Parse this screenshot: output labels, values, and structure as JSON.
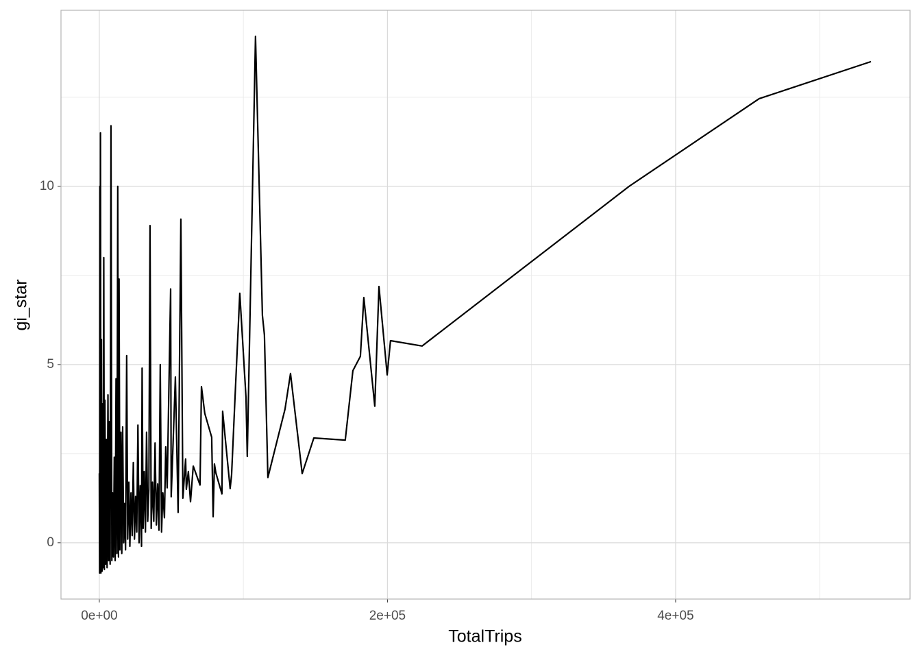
{
  "chart_data": {
    "type": "line",
    "x_label": "TotalTrips",
    "y_label": "gi_star",
    "color": "#000000",
    "grid": true,
    "xlim": [
      -26600,
      562700
    ],
    "ylim": [
      -1.58,
      14.94
    ],
    "xticks": [
      {
        "value": 0,
        "label": "0e+00"
      },
      {
        "value": 200000,
        "label": "2e+05"
      },
      {
        "value": 400000,
        "label": "4e+05"
      }
    ],
    "yticks": [
      0,
      5,
      10
    ],
    "x": [
      0,
      200,
      400,
      600,
      800,
      1100,
      1500,
      1900,
      2300,
      2700,
      3100,
      3500,
      3900,
      4400,
      4900,
      5400,
      6000,
      6500,
      7000,
      7500,
      8100,
      8700,
      9200,
      9800,
      10400,
      11000,
      11600,
      12200,
      12800,
      13300,
      13700,
      14300,
      15000,
      15600,
      16200,
      16900,
      17500,
      18200,
      19000,
      19700,
      20500,
      21200,
      22000,
      22800,
      23600,
      24400,
      25200,
      26000,
      26800,
      27600,
      28400,
      29300,
      29700,
      30400,
      31200,
      32000,
      32800,
      33600,
      34400,
      35200,
      36000,
      36900,
      37800,
      38700,
      39600,
      40500,
      41400,
      42300,
      43200,
      44100,
      45200,
      46100,
      47100,
      49500,
      49900,
      52800,
      54700,
      56600,
      58000,
      59900,
      60400,
      61800,
      63300,
      65200,
      69900,
      70900,
      73200,
      78000,
      79000,
      79900,
      80900,
      85100,
      85600,
      90800,
      91800,
      94200,
      97500,
      101800,
      102700,
      108400,
      113200,
      114600,
      117000,
      128900,
      132700,
      140800,
      148900,
      170700,
      176000,
      181200,
      183600,
      191200,
      194100,
      199800,
      202100,
      224000,
      367700,
      458000,
      535600
    ],
    "values": [
      1.95,
      -0.85,
      10.0,
      -0.8,
      11.5,
      -0.85,
      5.7,
      -0.8,
      3.9,
      -0.7,
      8.0,
      -0.75,
      4.0,
      -0.6,
      2.9,
      -0.7,
      4.15,
      -0.5,
      3.4,
      -0.6,
      11.7,
      -0.5,
      1.4,
      -0.4,
      2.4,
      -0.5,
      4.6,
      -0.3,
      10.0,
      -0.4,
      7.4,
      -0.2,
      3.1,
      -0.3,
      3.25,
      0.0,
      1.1,
      -0.2,
      5.25,
      0.1,
      1.7,
      -0.1,
      1.4,
      0.2,
      2.25,
      0.1,
      1.3,
      0.3,
      3.3,
      0.0,
      1.6,
      -0.1,
      4.9,
      0.4,
      2.0,
      0.3,
      3.1,
      0.6,
      1.5,
      8.9,
      0.4,
      1.7,
      0.6,
      2.8,
      0.5,
      1.65,
      0.35,
      5.0,
      0.3,
      1.4,
      0.7,
      2.69,
      1.54,
      7.12,
      1.29,
      4.65,
      0.85,
      9.08,
      1.25,
      2.35,
      1.5,
      2.0,
      1.15,
      2.15,
      1.62,
      4.38,
      3.63,
      2.96,
      0.73,
      2.21,
      1.96,
      1.37,
      3.69,
      1.52,
      1.9,
      4.08,
      7.0,
      4.08,
      2.42,
      14.21,
      6.38,
      5.83,
      1.83,
      3.75,
      4.75,
      1.94,
      2.94,
      2.88,
      4.83,
      5.23,
      6.88,
      3.83,
      7.19,
      4.71,
      5.67,
      5.52,
      10.0,
      12.46,
      13.5
    ]
  }
}
